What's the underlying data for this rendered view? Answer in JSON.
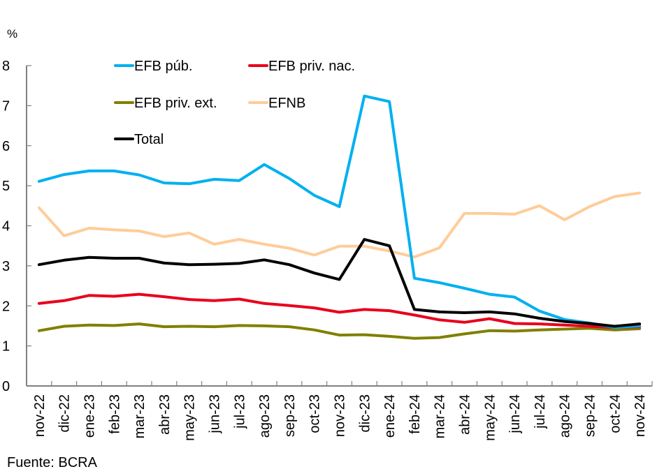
{
  "chart_data": {
    "type": "line",
    "title": "",
    "ylabel": "%",
    "xlabel": "",
    "ylim": [
      0,
      8
    ],
    "yticks": [
      "0",
      "1",
      "2",
      "3",
      "4",
      "5",
      "6",
      "7",
      "8"
    ],
    "grid": false,
    "legend_position": "top-left-inside",
    "source": "Fuente: BCRA",
    "categories": [
      "nov-22",
      "dic-22",
      "ene-23",
      "feb-23",
      "mar-23",
      "abr-23",
      "may-23",
      "jun-23",
      "jul-23",
      "ago-23",
      "sep-23",
      "oct-23",
      "nov-23",
      "dic-23",
      "ene-24",
      "feb-24",
      "mar-24",
      "abr-24",
      "may-24",
      "jun-24",
      "jul-24",
      "ago-24",
      "sep-24",
      "oct-24",
      "nov-24"
    ],
    "series": [
      {
        "name": "EFB púb.",
        "color": "#00B0F0",
        "values": [
          5.11,
          5.28,
          5.37,
          5.37,
          5.27,
          5.07,
          5.05,
          5.16,
          5.13,
          5.53,
          5.18,
          4.76,
          4.48,
          7.24,
          7.1,
          2.69,
          2.58,
          2.44,
          2.29,
          2.22,
          1.87,
          1.66,
          1.57,
          1.46,
          1.5
        ]
      },
      {
        "name": "EFB priv. nac.",
        "color": "#E8001C",
        "values": [
          2.06,
          2.13,
          2.26,
          2.24,
          2.29,
          2.23,
          2.16,
          2.13,
          2.17,
          2.06,
          2.01,
          1.95,
          1.84,
          1.91,
          1.88,
          1.77,
          1.65,
          1.59,
          1.68,
          1.56,
          1.55,
          1.52,
          1.49,
          1.46,
          1.48
        ]
      },
      {
        "name": "EFB priv. ext.",
        "color": "#808000",
        "values": [
          1.38,
          1.49,
          1.52,
          1.51,
          1.55,
          1.48,
          1.49,
          1.48,
          1.51,
          1.5,
          1.48,
          1.4,
          1.27,
          1.28,
          1.24,
          1.19,
          1.21,
          1.3,
          1.38,
          1.37,
          1.4,
          1.42,
          1.44,
          1.4,
          1.43
        ]
      },
      {
        "name": "EFNB",
        "color": "#FFCC99",
        "values": [
          4.45,
          3.75,
          3.94,
          3.9,
          3.87,
          3.73,
          3.82,
          3.54,
          3.66,
          3.54,
          3.44,
          3.27,
          3.49,
          3.49,
          3.37,
          3.22,
          3.45,
          4.31,
          4.31,
          4.29,
          4.5,
          4.15,
          4.48,
          4.73,
          4.82
        ]
      },
      {
        "name": "Total",
        "color": "#000000",
        "values": [
          3.03,
          3.14,
          3.21,
          3.19,
          3.19,
          3.07,
          3.03,
          3.04,
          3.06,
          3.15,
          3.03,
          2.82,
          2.66,
          3.66,
          3.5,
          1.91,
          1.85,
          1.83,
          1.85,
          1.8,
          1.69,
          1.61,
          1.56,
          1.49,
          1.55
        ]
      }
    ]
  }
}
